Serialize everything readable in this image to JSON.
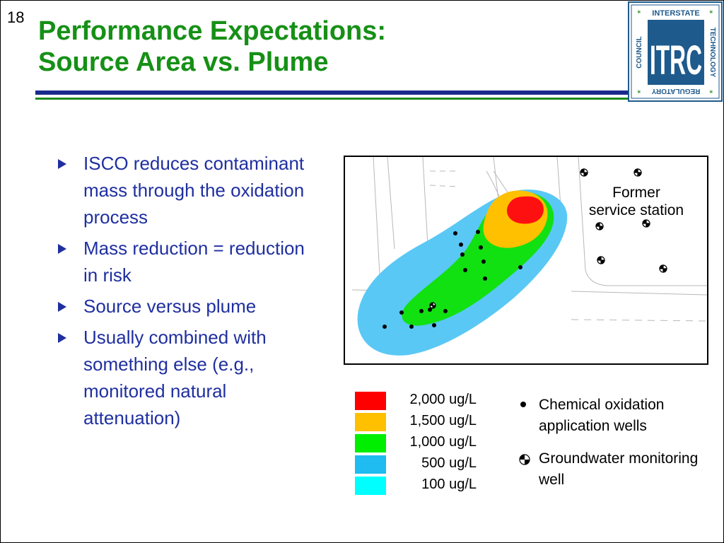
{
  "slide": {
    "number": "18",
    "title_line1": "Performance Expectations:",
    "title_line2": "Source Area vs. Plume"
  },
  "logo": {
    "top_text": "INTERSTATE",
    "right_text": "TECHNOLOGY",
    "bottom_text": "REGULATORY",
    "left_text": "COUNCIL",
    "center_text": "ITRC"
  },
  "bullets": [
    "ISCO reduces contaminant mass through the oxidation process",
    "Mass reduction = reduction in risk",
    "Source versus plume",
    "Usually combined with something else (e.g., monitored natural attenuation)"
  ],
  "map": {
    "label_line1": "Former",
    "label_line2": "service station"
  },
  "legend": [
    {
      "label": "2,000 ug/L",
      "color": "#ff0000"
    },
    {
      "label": "1,500 ug/L",
      "color": "#ffc000"
    },
    {
      "label": "1,000 ug/L",
      "color": "#00ee00"
    },
    {
      "label": "500 ug/L",
      "color": "#1ebcf0"
    },
    {
      "label": "100 ug/L",
      "color": "#00ffff"
    }
  ],
  "key": {
    "oxidation_wells": "Chemical oxidation application wells",
    "monitoring_well": "Groundwater monitoring well"
  },
  "colors": {
    "title_green": "#169016",
    "bullet_blue": "#1f2fa0",
    "rule_blue": "#1a2a8c",
    "logo_blue": "#1f5a8c"
  }
}
